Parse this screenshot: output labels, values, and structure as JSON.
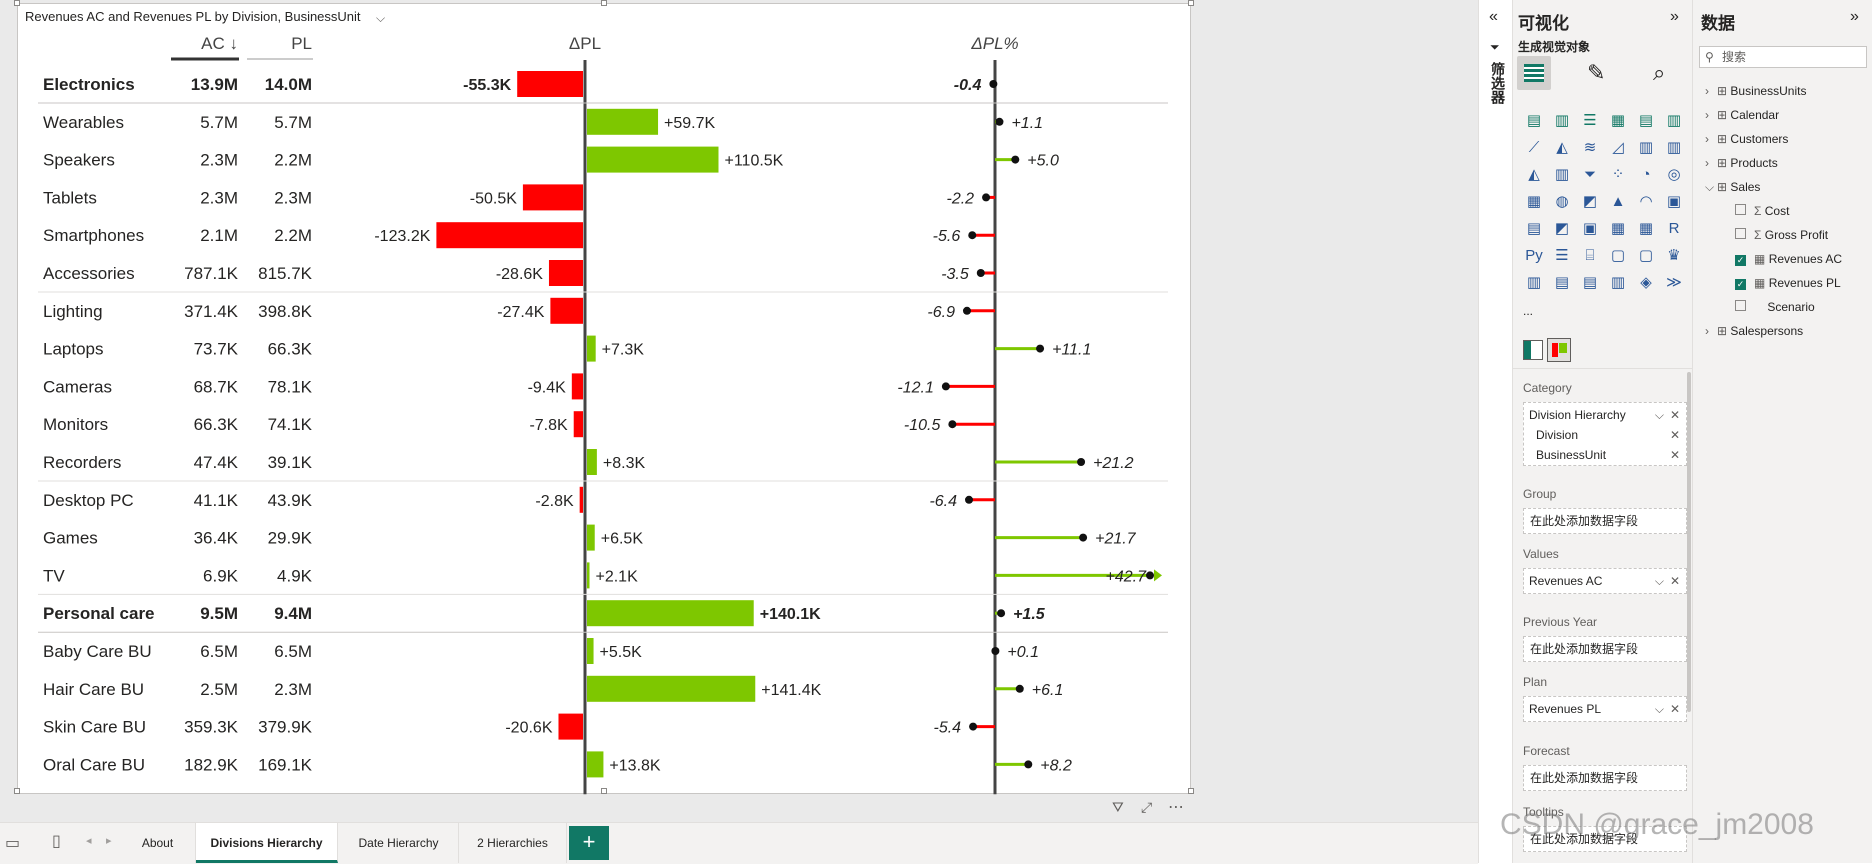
{
  "visual": {
    "title": "Revenues AC and Revenues PL by Division, BusinessUnit",
    "col_ac": "AC ↓",
    "col_pl": "PL",
    "col_delta": "ΔPL",
    "col_deltapct": "ΔPL%"
  },
  "colors": {
    "positive": "#7ec700",
    "negative": "#ff0000",
    "accent": "#117865"
  },
  "rows": [
    {
      "label": "Electronics",
      "ac": "13.9M",
      "pl": "14.0M",
      "delta": -55.3,
      "delta_label": "-55.3K",
      "pct": -0.4,
      "pct_label": "-0.4",
      "bold": true
    },
    {
      "label": "Wearables",
      "ac": "5.7M",
      "pl": "5.7M",
      "delta": 59.7,
      "delta_label": "+59.7K",
      "pct": 1.1,
      "pct_label": "+1.1"
    },
    {
      "label": "Speakers",
      "ac": "2.3M",
      "pl": "2.2M",
      "delta": 110.5,
      "delta_label": "+110.5K",
      "pct": 5.0,
      "pct_label": "+5.0"
    },
    {
      "label": "Tablets",
      "ac": "2.3M",
      "pl": "2.3M",
      "delta": -50.5,
      "delta_label": "-50.5K",
      "pct": -2.2,
      "pct_label": "-2.2"
    },
    {
      "label": "Smartphones",
      "ac": "2.1M",
      "pl": "2.2M",
      "delta": -123.2,
      "delta_label": "-123.2K",
      "pct": -5.6,
      "pct_label": "-5.6"
    },
    {
      "label": "Accessories",
      "ac": "787.1K",
      "pl": "815.7K",
      "delta": -28.6,
      "delta_label": "-28.6K",
      "pct": -3.5,
      "pct_label": "-3.5"
    },
    {
      "label": "Lighting",
      "ac": "371.4K",
      "pl": "398.8K",
      "delta": -27.4,
      "delta_label": "-27.4K",
      "pct": -6.9,
      "pct_label": "-6.9"
    },
    {
      "label": "Laptops",
      "ac": "73.7K",
      "pl": "66.3K",
      "delta": 7.3,
      "delta_label": "+7.3K",
      "pct": 11.1,
      "pct_label": "+11.1"
    },
    {
      "label": "Cameras",
      "ac": "68.7K",
      "pl": "78.1K",
      "delta": -9.4,
      "delta_label": "-9.4K",
      "pct": -12.1,
      "pct_label": "-12.1"
    },
    {
      "label": "Monitors",
      "ac": "66.3K",
      "pl": "74.1K",
      "delta": -7.8,
      "delta_label": "-7.8K",
      "pct": -10.5,
      "pct_label": "-10.5"
    },
    {
      "label": "Recorders",
      "ac": "47.4K",
      "pl": "39.1K",
      "delta": 8.3,
      "delta_label": "+8.3K",
      "pct": 21.2,
      "pct_label": "+21.2"
    },
    {
      "label": "Desktop PC",
      "ac": "41.1K",
      "pl": "43.9K",
      "delta": -2.8,
      "delta_label": "-2.8K",
      "pct": -6.4,
      "pct_label": "-6.4"
    },
    {
      "label": "Games",
      "ac": "36.4K",
      "pl": "29.9K",
      "delta": 6.5,
      "delta_label": "+6.5K",
      "pct": 21.7,
      "pct_label": "+21.7"
    },
    {
      "label": "TV",
      "ac": "6.9K",
      "pl": "4.9K",
      "delta": 2.1,
      "delta_label": "+2.1K",
      "pct": 42.7,
      "pct_label": "+42.7",
      "clipped": true
    },
    {
      "label": "Personal care",
      "ac": "9.5M",
      "pl": "9.4M",
      "delta": 140.1,
      "delta_label": "+140.1K",
      "pct": 1.5,
      "pct_label": "+1.5",
      "bold": true
    },
    {
      "label": "Baby Care BU",
      "ac": "6.5M",
      "pl": "6.5M",
      "delta": 5.5,
      "delta_label": "+5.5K",
      "pct": 0.1,
      "pct_label": "+0.1"
    },
    {
      "label": "Hair Care BU",
      "ac": "2.5M",
      "pl": "2.3M",
      "delta": 141.4,
      "delta_label": "+141.4K",
      "pct": 6.1,
      "pct_label": "+6.1"
    },
    {
      "label": "Skin Care BU",
      "ac": "359.3K",
      "pl": "379.9K",
      "delta": -20.6,
      "delta_label": "-20.6K",
      "pct": -5.4,
      "pct_label": "-5.4"
    },
    {
      "label": "Oral Care BU",
      "ac": "182.9K",
      "pl": "169.1K",
      "delta": 13.8,
      "delta_label": "+13.8K",
      "pct": 8.2,
      "pct_label": "+8.2"
    }
  ],
  "footer": {
    "tabs": [
      "About",
      "Divisions Hierarchy",
      "Date Hierarchy",
      "2 Hierarchies"
    ],
    "active": "Divisions Hierarchy",
    "add": "+"
  },
  "filters_label": "筛选器",
  "viz_pane": {
    "title": "可视化",
    "subtitle": "生成视觉对象",
    "more": "...",
    "wells": {
      "category_label": "Category",
      "category_fields": [
        "Division Hierarchy",
        "Division",
        "BusinessUnit"
      ],
      "group_label": "Group",
      "group_placeholder": "在此处添加数据字段",
      "values_label": "Values",
      "values_field": "Revenues AC",
      "previous_year_label": "Previous Year",
      "previous_year_placeholder": "在此处添加数据字段",
      "plan_label": "Plan",
      "plan_field": "Revenues PL",
      "forecast_label": "Forecast",
      "forecast_placeholder": "在此处添加数据字段",
      "tooltips_label": "Tooltips",
      "tooltips_placeholder": "在此处添加数据字段"
    }
  },
  "data_pane": {
    "title": "数据",
    "search_placeholder": "搜索",
    "tables": [
      "BusinessUnits",
      "Calendar",
      "Customers",
      "Products",
      "Sales",
      "Salespersons"
    ],
    "sales_fields": [
      {
        "name": "Cost",
        "checked": false,
        "icon": "sigma"
      },
      {
        "name": "Gross Profit",
        "checked": false,
        "icon": "sigma"
      },
      {
        "name": "Revenues AC",
        "checked": true,
        "icon": "calculator"
      },
      {
        "name": "Revenues PL",
        "checked": true,
        "icon": "calculator"
      },
      {
        "name": "Scenario",
        "checked": false,
        "icon": "none"
      }
    ]
  },
  "watermark": "CSDN @grace_jm2008"
}
